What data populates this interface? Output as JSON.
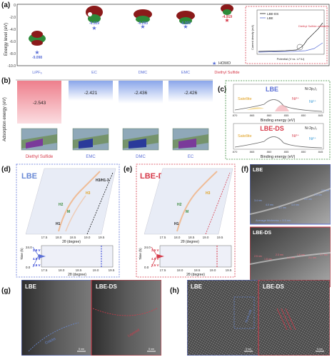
{
  "panels": {
    "a": {
      "tag": "(a)",
      "ylabel": "Energy level (eV)",
      "yticks": [
        "0",
        "-2.0",
        "-4.0",
        "-6.0",
        "-8.0",
        "-10.0"
      ],
      "molecules": [
        {
          "name": "LiPF₆",
          "homo": "-9.098"
        },
        {
          "name": "EC",
          "homo": "-6.529"
        },
        {
          "name": "DMC",
          "homo": "-6.293"
        },
        {
          "name": "EMC",
          "homo": "-6.303"
        },
        {
          "name": "Diethyl Sulfide",
          "homo": "-4.919"
        }
      ],
      "legend_homo": "HOMO",
      "inset": {
        "ylabel": "Current density (mA)",
        "xlabel": "Potential (V vs. Li⁺/Li)",
        "legend": [
          "LBE-DS",
          "LBE"
        ],
        "annotation": "Diethyl Sulfide oxidation"
      }
    },
    "b": {
      "tag": "(b)",
      "ylabel": "Adsorption energy (eV)",
      "bars": [
        {
          "name": "Diethyl Sulfide",
          "value": "-2.543"
        },
        {
          "name": "EMC",
          "value": "-2.421"
        },
        {
          "name": "DMC",
          "value": "-2.436"
        },
        {
          "name": "EC",
          "value": "-2.426"
        }
      ]
    },
    "c": {
      "tag": "(c)",
      "spectra": [
        {
          "title": "LBE",
          "ni": "Ni 2p₃/₂",
          "satellite": "Satellite",
          "ni3": "Ni³⁺",
          "ni2": "Ni²⁺"
        },
        {
          "title": "LBE-DS",
          "ni": "Ni 2p₃/₂",
          "satellite": "Satellite",
          "ni3": "Ni³⁺",
          "ni2": "Ni²⁺"
        }
      ],
      "xlabel": "Binding energy (eV)",
      "xticks": [
        "870",
        "865",
        "860",
        "855",
        "850",
        "845"
      ]
    },
    "d": {
      "tag": "(d)",
      "title": "LBE",
      "phase_labels": [
        "H2",
        "M",
        "H1",
        "H3/H1-3",
        "H3"
      ],
      "xlabel": "2θ (degree)",
      "xticks": [
        "17.5",
        "18.0",
        "18.5",
        "19.0",
        "19.5"
      ],
      "time_label": "Time (h)",
      "time_ticks": [
        "24.0",
        "0.0"
      ],
      "voltages": [
        "2.5 V",
        "4.5 V",
        "2.5 V"
      ]
    },
    "e": {
      "tag": "(e)",
      "title": "LBE-DS",
      "phase_labels": [
        "H2",
        "M",
        "H1",
        "H3"
      ],
      "xlabel": "2θ (degree)",
      "xticks": [
        "17.5",
        "18.0",
        "18.5",
        "19.0",
        "19.5"
      ],
      "time_label": "Time (h)",
      "time_ticks": [
        "24.0",
        "0.0"
      ],
      "voltages": [
        "2.5 V",
        "4.5 V",
        "2.5 V"
      ]
    },
    "f": {
      "tag": "(f)",
      "images": [
        {
          "title": "LBE",
          "caption": "Average thickness = 3.5 nm",
          "measures": [
            "3.4 nm",
            "4.0 nm",
            "3.1 nm",
            "4.0 nm",
            "4.2 nm",
            "2.5 nm",
            "2.5 nm"
          ]
        },
        {
          "title": "LBE-DS",
          "caption": "Average thickness = 2.0 nm",
          "measures": [
            "2.5 nm",
            "1.8 nm",
            "2.3 nm",
            "1.7 nm",
            "1.6 nm",
            "2.1 nm",
            "1.7 nm"
          ]
        }
      ]
    },
    "g": {
      "tag": "(g)",
      "images": [
        {
          "title": "LBE",
          "overlay": "Cracks",
          "scale": "5 nm"
        },
        {
          "title": "LBE-DS",
          "overlay": "Layered",
          "scale": "5 nm"
        }
      ]
    },
    "h": {
      "tag": "(h)",
      "images": [
        {
          "title": "LBE",
          "overlay": "Rock-salt",
          "scale": "5 nm"
        },
        {
          "title": "LBE-DS",
          "overlay": "",
          "scale": "5 nm"
        }
      ]
    }
  },
  "colors": {
    "blue": "#5a6fd6",
    "red": "#d63a4a",
    "green": "#3a8a3a",
    "pink_bar": "#f0909a",
    "blue_bar": "#9db4ee"
  }
}
